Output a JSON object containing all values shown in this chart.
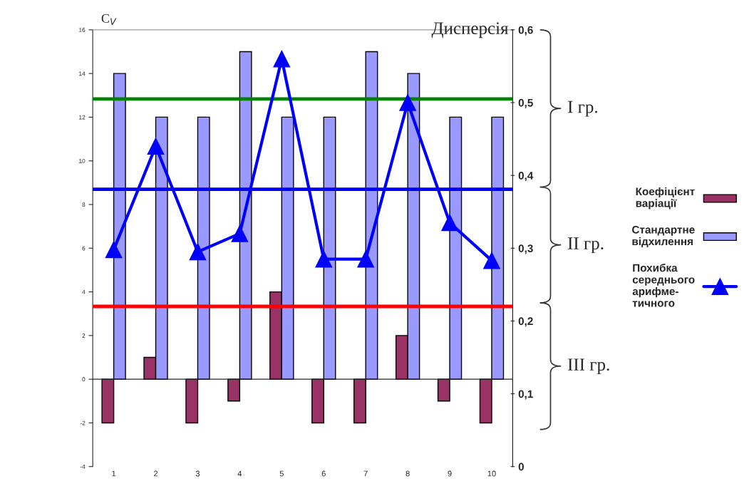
{
  "chart_data": {
    "type": "bar",
    "ylabel": "C$_{V}$",
    "y2label": "Дисперсія",
    "categories": [
      "1",
      "2",
      "3",
      "4",
      "5",
      "6",
      "7",
      "8",
      "9",
      "10"
    ],
    "series": [
      {
        "name": "Коефіцієнт\nваріації",
        "color": "#993366",
        "values": [
          -2,
          1,
          -2,
          -1,
          4,
          -2,
          -2,
          2,
          -1,
          -2
        ]
      },
      {
        "name": "Стандартне\nвідхилення",
        "color": "#9999ff",
        "values": [
          14,
          12,
          12,
          15,
          12,
          12,
          15,
          14,
          12,
          12
        ]
      },
      {
        "name": "Похибка\nсереднього\nарифме-\nтичного",
        "type": "line",
        "axis": "y2",
        "color": "#0000ff",
        "marker": "triangle",
        "values": [
          0.298,
          0.44,
          0.295,
          0.32,
          0.56,
          0.285,
          0.285,
          0.5,
          0.335,
          0.283
        ]
      }
    ],
    "ylim": [
      -4,
      16
    ],
    "yticks": [
      -4,
      -2,
      0,
      2,
      4,
      6,
      8,
      10,
      12,
      14,
      16
    ],
    "y2lim": [
      0,
      0.6
    ],
    "y2ticks": [
      0,
      {
        "value": 0.1,
        "label": "0,1"
      },
      {
        "value": 0.2,
        "label": "0,2"
      },
      {
        "value": 0.3,
        "label": "0,3"
      },
      {
        "value": 0.4,
        "label": "0,4"
      },
      {
        "value": 0.5,
        "label": "0,5"
      },
      {
        "value": 0.6,
        "label": "0,6"
      }
    ],
    "ref_lines": [
      {
        "axis": "y2",
        "value": 0.505,
        "color": "#008000"
      },
      {
        "axis": "y2",
        "value": 0.381,
        "color": "#0000ff"
      },
      {
        "axis": "y2",
        "value": 0.22,
        "color": "#ff0000"
      }
    ],
    "annotations": [
      "I гр.",
      "II гр.",
      "III гр."
    ],
    "legend": "right"
  }
}
